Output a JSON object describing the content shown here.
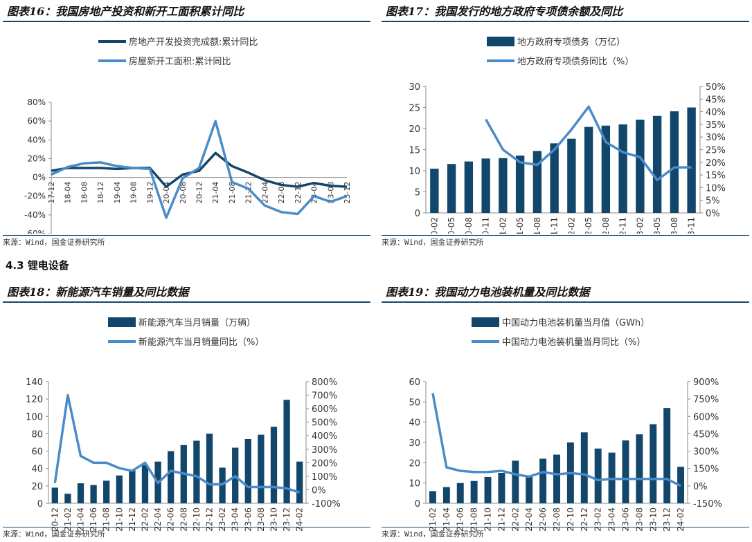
{
  "section_heading": "4.3 锂电设备",
  "source_text": "来源：Wind，国金证券研究所",
  "colors": {
    "primary": "#12466b",
    "secondary": "#4a8bc9",
    "rule": "#15456b"
  },
  "charts": [
    {
      "title": "图表16：我国房地产投资和新开工面积累计同比",
      "chart_data": {
        "type": "line",
        "categories": [
          "17-12",
          "18-04",
          "18-08",
          "18-12",
          "19-04",
          "19-08",
          "19-12",
          "20-04",
          "20-08",
          "20-12",
          "21-04",
          "21-08",
          "21-12",
          "22-04",
          "22-08",
          "22-12",
          "23-04",
          "23-08",
          "23-12"
        ],
        "series": [
          {
            "name": "房地产开发投资完成额:累计同比",
            "values": [
              7,
              10,
              10,
              10,
              9,
              10,
              10,
              -10,
              3,
              7,
              26,
              12,
              5,
              -3,
              -8,
              -10,
              -6,
              -9,
              -10
            ]
          },
          {
            "name": "房屋新开工面积:累计同比",
            "values": [
              3,
              11,
              15,
              16,
              12,
              10,
              9,
              -43,
              -1,
              10,
              60,
              -5,
              -12,
              -30,
              -37,
              -39,
              -20,
              -26,
              -20
            ]
          }
        ],
        "ylim": [
          -60,
          80
        ],
        "ytick_labels": [
          "80%",
          "60%",
          "40%",
          "20%",
          "0%",
          "-20%",
          "-40%",
          "-60%"
        ],
        "legend_position": "top-center"
      }
    },
    {
      "title": "图表17：我国发行的地方政府专项债余额及同比",
      "chart_data": {
        "type": "bar+line",
        "categories": [
          "20-02",
          "20-05",
          "20-08",
          "20-11",
          "21-02",
          "21-05",
          "21-08",
          "21-11",
          "22-02",
          "22-05",
          "22-08",
          "22-11",
          "23-02",
          "23-05",
          "23-08",
          "23-11"
        ],
        "series": [
          {
            "name": "地方政府专项债务（万亿）",
            "axis": "left",
            "type": "bar",
            "values": [
              10.5,
              11.6,
              12.2,
              12.9,
              13.0,
              13.6,
              14.7,
              16.5,
              17.6,
              20.4,
              20.7,
              21.0,
              22.1,
              23.0,
              24.1,
              25.0
            ]
          },
          {
            "name": "地方政府专项债务同比（%）",
            "axis": "right",
            "type": "line",
            "values": [
              null,
              null,
              null,
              37,
              25,
              20,
              19,
              25,
              33,
              42,
              28,
              24,
              22,
              13,
              18,
              18
            ]
          }
        ],
        "ylim_left": [
          0,
          30
        ],
        "ytick_labels_left": [
          "30",
          "25",
          "20",
          "15",
          "10",
          "5",
          "0"
        ],
        "ylim_right": [
          0,
          50
        ],
        "ytick_labels_right": [
          "50%",
          "45%",
          "40%",
          "35%",
          "30%",
          "25%",
          "20%",
          "15%",
          "10%",
          "5%",
          "0%"
        ],
        "legend_position": "top-center"
      }
    },
    {
      "title": "图表18：新能源汽车销量及同比数据",
      "chart_data": {
        "type": "bar+line",
        "categories": [
          "20-12",
          "21-02",
          "21-04",
          "21-06",
          "21-08",
          "21-10",
          "21-12",
          "22-02",
          "22-04",
          "22-06",
          "22-08",
          "22-10",
          "22-12",
          "23-02",
          "23-04",
          "23-06",
          "23-08",
          "23-10",
          "23-12",
          "24-02"
        ],
        "series": [
          {
            "name": "新能源汽车当月销量（万辆）",
            "axis": "left",
            "type": "bar",
            "values": [
              18,
              11,
              23,
              21,
              26,
              32,
              38,
              44,
              48,
              60,
              67,
              72,
              80,
              41,
              64,
              74,
              79,
              88,
              119,
              48
            ]
          },
          {
            "name": "新能源汽车当月销量同比（%）",
            "axis": "right",
            "type": "line",
            "values": [
              50,
              700,
              250,
              200,
              200,
              160,
              140,
              200,
              50,
              140,
              120,
              100,
              40,
              40,
              100,
              20,
              20,
              20,
              10,
              -20
            ]
          }
        ],
        "ylim_left": [
          0,
          140
        ],
        "ytick_labels_left": [
          "140",
          "120",
          "100",
          "80",
          "60",
          "40",
          "20",
          "0"
        ],
        "ylim_right": [
          -100,
          800
        ],
        "ytick_labels_right": [
          "800%",
          "700%",
          "600%",
          "500%",
          "400%",
          "300%",
          "200%",
          "100%",
          "0%",
          "-100%"
        ],
        "legend_position": "top-center"
      }
    },
    {
      "title": "图表19：我国动力电池装机量及同比数据",
      "chart_data": {
        "type": "bar+line",
        "categories": [
          "21-02",
          "21-04",
          "21-06",
          "21-08",
          "21-10",
          "21-12",
          "22-02",
          "22-04",
          "22-06",
          "22-08",
          "22-10",
          "22-12",
          "23-02",
          "23-04",
          "23-06",
          "23-08",
          "23-10",
          "23-12",
          "24-02"
        ],
        "series": [
          {
            "name": "中国动力电池装机量当月值（GWh）",
            "axis": "left",
            "type": "bar",
            "values": [
              6,
              8,
              10,
              11,
              13,
              15,
              21,
              13,
              22,
              24,
              30,
              35,
              27,
              25,
              31,
              34,
              39,
              47,
              18
            ]
          },
          {
            "name": "中国动力电池装机量当月同比（%）",
            "axis": "right",
            "type": "line",
            "values": [
              800,
              160,
              130,
              120,
              120,
              130,
              100,
              80,
              120,
              100,
              110,
              100,
              50,
              60,
              60,
              60,
              60,
              60,
              0
            ]
          }
        ],
        "ylim_left": [
          0,
          60
        ],
        "ytick_labels_left": [
          "60",
          "50",
          "40",
          "30",
          "20",
          "10",
          "0"
        ],
        "ylim_right": [
          -150,
          900
        ],
        "ytick_labels_right": [
          "900%",
          "750%",
          "600%",
          "450%",
          "300%",
          "150%",
          "0%",
          "-150%"
        ],
        "legend_position": "top-center"
      }
    }
  ]
}
